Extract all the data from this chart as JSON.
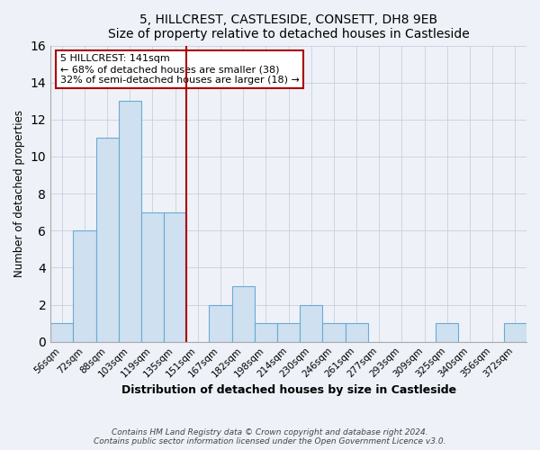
{
  "title": "5, HILLCREST, CASTLESIDE, CONSETT, DH8 9EB",
  "subtitle": "Size of property relative to detached houses in Castleside",
  "xlabel": "Distribution of detached houses by size in Castleside",
  "ylabel": "Number of detached properties",
  "bin_labels": [
    "56sqm",
    "72sqm",
    "88sqm",
    "103sqm",
    "119sqm",
    "135sqm",
    "151sqm",
    "167sqm",
    "182sqm",
    "198sqm",
    "214sqm",
    "230sqm",
    "246sqm",
    "261sqm",
    "277sqm",
    "293sqm",
    "309sqm",
    "325sqm",
    "340sqm",
    "356sqm",
    "372sqm"
  ],
  "bin_counts": [
    1,
    6,
    11,
    13,
    7,
    7,
    0,
    2,
    3,
    1,
    1,
    2,
    1,
    1,
    0,
    0,
    0,
    1,
    0,
    0,
    1
  ],
  "bar_color": "#cfe0f0",
  "bar_edge_color": "#6aaad4",
  "vline_x_index": 6,
  "vline_color": "#aa0000",
  "annotation_title": "5 HILLCREST: 141sqm",
  "annotation_line1": "← 68% of detached houses are smaller (38)",
  "annotation_line2": "32% of semi-detached houses are larger (18) →",
  "annotation_box_color": "#aa0000",
  "ylim": [
    0,
    16
  ],
  "yticks": [
    0,
    2,
    4,
    6,
    8,
    10,
    12,
    14,
    16
  ],
  "footer1": "Contains HM Land Registry data © Crown copyright and database right 2024.",
  "footer2": "Contains public sector information licensed under the Open Government Licence v3.0.",
  "bg_color": "#eef2f8",
  "plot_bg_color": "#eef2f8",
  "grid_color": "#c8d0dc"
}
